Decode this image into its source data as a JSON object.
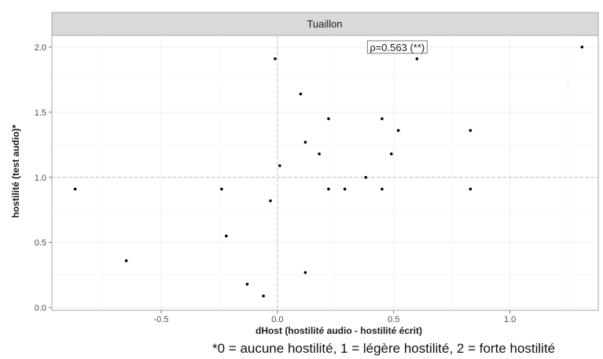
{
  "chart_data": {
    "type": "scatter",
    "panel_title": "Tuaillon",
    "xlabel": "dHost (hostilité audio - hostilité écrit)",
    "ylabel": "hostilité (test audio)*",
    "xlim": [
      -0.97,
      1.38
    ],
    "ylim": [
      -0.02,
      2.09
    ],
    "x_ticks": [
      -0.5,
      0.0,
      0.5,
      1.0
    ],
    "x_tick_labels": [
      "-0.5",
      "0.0",
      "0.5",
      "1.0"
    ],
    "y_ticks": [
      0.0,
      0.5,
      1.0,
      1.5,
      2.0
    ],
    "y_tick_labels": [
      "0.0",
      "0.5",
      "1.0",
      "1.5",
      "2.0"
    ],
    "grid": true,
    "reference_lines": {
      "x": 0.0,
      "y": 1.0
    },
    "annotation": {
      "text": "ρ=0.563 (**)",
      "x": 0.6,
      "y": 2.0
    },
    "points": [
      {
        "x": -0.87,
        "y": 0.91
      },
      {
        "x": -0.65,
        "y": 0.36
      },
      {
        "x": -0.24,
        "y": 0.91
      },
      {
        "x": -0.22,
        "y": 0.55
      },
      {
        "x": -0.13,
        "y": 0.18
      },
      {
        "x": -0.06,
        "y": 0.09
      },
      {
        "x": -0.03,
        "y": 0.82
      },
      {
        "x": -0.01,
        "y": 1.91
      },
      {
        "x": 0.01,
        "y": 1.09
      },
      {
        "x": 0.1,
        "y": 1.64
      },
      {
        "x": 0.12,
        "y": 1.27
      },
      {
        "x": 0.12,
        "y": 0.27
      },
      {
        "x": 0.18,
        "y": 1.18
      },
      {
        "x": 0.22,
        "y": 1.45
      },
      {
        "x": 0.22,
        "y": 0.91
      },
      {
        "x": 0.29,
        "y": 0.91
      },
      {
        "x": 0.38,
        "y": 1.0
      },
      {
        "x": 0.45,
        "y": 1.45
      },
      {
        "x": 0.45,
        "y": 0.91
      },
      {
        "x": 0.49,
        "y": 1.18
      },
      {
        "x": 0.52,
        "y": 1.36
      },
      {
        "x": 0.6,
        "y": 1.91
      },
      {
        "x": 0.83,
        "y": 1.36
      },
      {
        "x": 0.83,
        "y": 0.91
      },
      {
        "x": 1.31,
        "y": 2.0
      }
    ]
  },
  "footnote": "*0 = aucune hostilité, 1 = légère hostilité, 2 = forte hostilité"
}
